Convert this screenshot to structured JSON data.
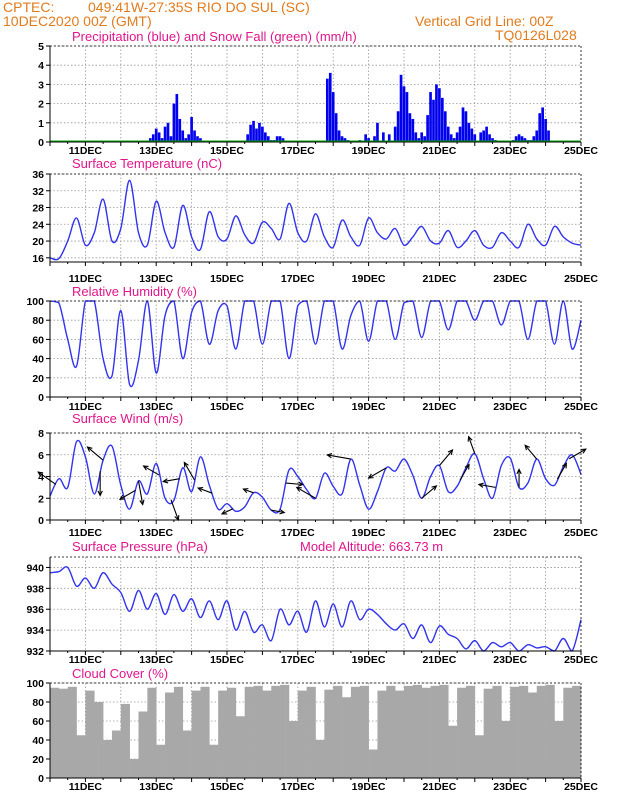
{
  "header": {
    "source": "CPTEC:",
    "location": "049:41W-27:35S  RIO DO SUL (SC)",
    "init_time": "10DEC2020 00Z (GMT)",
    "grid_note": "Vertical Grid Line: 00Z",
    "run_code": "TQ0126L028"
  },
  "colors": {
    "header": "#e07b1e",
    "panel_title": "#e0168a",
    "precip": "#0000ee",
    "snow": "#00aa00",
    "line": "#3333ee",
    "cloud": "#a8a8a8",
    "wind_arrow": "#000000"
  },
  "chart_data": [
    {
      "type": "bar",
      "title": "Precipitation (blue) and Snow Fall (green) (mm/h)",
      "x_unit": "hours after 10DEC2020 00Z",
      "xlim": [
        0,
        360
      ],
      "ylim": [
        0,
        5
      ],
      "yticks": [
        0,
        1,
        2,
        3,
        4,
        5
      ],
      "xticks": [
        "11DEC",
        "13DEC",
        "15DEC",
        "17DEC",
        "19DEC",
        "21DEC",
        "23DEC",
        "25DEC"
      ],
      "grid": true,
      "series": [
        {
          "name": "precip",
          "x": [
            68,
            70,
            72,
            74,
            76,
            78,
            80,
            82,
            84,
            86,
            88,
            90,
            92,
            94,
            96,
            98,
            100,
            102,
            134,
            136,
            138,
            140,
            142,
            144,
            146,
            148,
            150,
            152,
            154,
            156,
            158,
            188,
            190,
            192,
            194,
            196,
            198,
            200,
            202,
            210,
            214,
            216,
            220,
            222,
            226,
            230,
            234,
            236,
            238,
            240,
            242,
            244,
            246,
            248,
            250,
            252,
            254,
            256,
            258,
            260,
            262,
            264,
            266,
            268,
            270,
            272,
            274,
            276,
            278,
            280,
            282,
            284,
            286,
            288,
            292,
            294,
            296,
            298,
            300,
            302,
            314,
            316,
            318,
            320,
            322,
            324,
            326,
            328,
            330,
            332,
            334,
            336,
            338
          ],
          "values": [
            0.2,
            0.4,
            0.7,
            0.5,
            0.2,
            0.8,
            1.0,
            0.3,
            2.0,
            2.5,
            1.2,
            0.6,
            0.2,
            0.4,
            1.3,
            0.6,
            0.3,
            0.2,
            0.4,
            0.9,
            1.1,
            0.7,
            1.0,
            0.8,
            0.5,
            0.3,
            0.1,
            0.1,
            0.3,
            0.3,
            0.2,
            3.3,
            3.6,
            2.6,
            1.5,
            0.6,
            0.3,
            0.2,
            0.1,
            0.1,
            0.4,
            0.2,
            0.3,
            1.0,
            0.5,
            0.4,
            0.8,
            1.6,
            3.5,
            2.9,
            2.6,
            1.5,
            1.2,
            0.5,
            0.2,
            0.5,
            0.3,
            1.4,
            2.6,
            2.2,
            3.0,
            2.8,
            2.3,
            1.6,
            0.8,
            0.4,
            0.2,
            0.5,
            0.8,
            1.8,
            1.6,
            1.0,
            0.7,
            0.4,
            0.5,
            0.6,
            0.8,
            0.4,
            0.2,
            0.1,
            0.1,
            0.3,
            0.4,
            0.3,
            0.2,
            0.1,
            0.1,
            0.3,
            0.6,
            1.5,
            1.8,
            1.2,
            0.6
          ]
        },
        {
          "name": "snow",
          "x": [
            0,
            360
          ],
          "values": [
            0.05,
            0.05
          ]
        }
      ]
    },
    {
      "type": "line",
      "title": "Surface Temperature (nC)",
      "x_unit": "hours after 10DEC2020 00Z",
      "xlim": [
        0,
        360
      ],
      "ylim": [
        15,
        36
      ],
      "yticks": [
        16,
        20,
        24,
        28,
        32,
        36
      ],
      "xticks": [
        "11DEC",
        "13DEC",
        "15DEC",
        "17DEC",
        "19DEC",
        "21DEC",
        "23DEC",
        "25DEC"
      ],
      "grid": true,
      "x": [
        0,
        6,
        12,
        18,
        24,
        30,
        36,
        42,
        48,
        54,
        60,
        66,
        72,
        78,
        84,
        90,
        96,
        102,
        108,
        114,
        120,
        126,
        132,
        138,
        144,
        150,
        156,
        162,
        168,
        174,
        180,
        186,
        192,
        198,
        204,
        210,
        216,
        222,
        228,
        234,
        240,
        246,
        252,
        258,
        264,
        270,
        276,
        282,
        288,
        294,
        300,
        306,
        312,
        318,
        324,
        330,
        336,
        342,
        348,
        354,
        360
      ],
      "values": [
        16,
        15.8,
        20,
        25.5,
        19,
        22,
        30,
        20,
        23,
        34.5,
        22,
        19,
        29.5,
        22,
        18.5,
        28.5,
        21,
        18,
        27,
        21,
        20.5,
        26,
        21.5,
        19.5,
        24.5,
        23,
        20.5,
        29,
        22,
        20,
        26.5,
        21,
        18.5,
        25,
        21,
        19,
        25.5,
        22,
        20.5,
        23,
        19,
        21,
        23.5,
        20,
        19.5,
        22.5,
        18.5,
        20,
        22.5,
        19,
        18.5,
        22,
        20,
        18.5,
        24,
        20.5,
        19,
        23.5,
        21,
        19.5,
        19
      ]
    },
    {
      "type": "line",
      "title": "Relative Humidity (%)",
      "x_unit": "hours after 10DEC2020 00Z",
      "xlim": [
        0,
        360
      ],
      "ylim": [
        0,
        100
      ],
      "yticks": [
        0,
        20,
        40,
        60,
        80,
        100
      ],
      "xticks": [
        "11DEC",
        "13DEC",
        "15DEC",
        "17DEC",
        "19DEC",
        "21DEC",
        "23DEC",
        "25DEC"
      ],
      "grid": true,
      "x": [
        0,
        6,
        12,
        18,
        24,
        30,
        36,
        42,
        48,
        54,
        60,
        66,
        72,
        78,
        84,
        90,
        96,
        102,
        108,
        114,
        120,
        126,
        132,
        138,
        144,
        150,
        156,
        162,
        168,
        174,
        180,
        186,
        192,
        198,
        204,
        210,
        216,
        222,
        228,
        234,
        240,
        246,
        252,
        258,
        264,
        270,
        276,
        282,
        288,
        294,
        300,
        306,
        312,
        318,
        324,
        330,
        336,
        342,
        348,
        354,
        360
      ],
      "values": [
        100,
        98,
        60,
        32,
        100,
        100,
        40,
        22,
        90,
        13,
        38,
        100,
        25,
        85,
        100,
        40,
        88,
        100,
        55,
        90,
        95,
        50,
        100,
        100,
        55,
        100,
        100,
        40,
        95,
        100,
        55,
        100,
        100,
        50,
        85,
        100,
        58,
        100,
        100,
        60,
        98,
        100,
        62,
        100,
        100,
        70,
        100,
        100,
        80,
        100,
        100,
        75,
        100,
        100,
        60,
        100,
        100,
        55,
        100,
        50,
        80
      ]
    },
    {
      "type": "line",
      "title": "Surface Wind (m/s)",
      "x_unit": "hours after 10DEC2020 00Z",
      "xlim": [
        0,
        360
      ],
      "ylim": [
        0,
        8
      ],
      "yticks": [
        0,
        2,
        4,
        6,
        8
      ],
      "xticks": [
        "11DEC",
        "13DEC",
        "15DEC",
        "17DEC",
        "19DEC",
        "21DEC",
        "23DEC",
        "25DEC"
      ],
      "grid": true,
      "x": [
        0,
        6,
        12,
        18,
        24,
        30,
        36,
        42,
        48,
        54,
        60,
        66,
        72,
        78,
        84,
        90,
        96,
        102,
        108,
        114,
        120,
        126,
        132,
        138,
        144,
        150,
        156,
        162,
        168,
        174,
        180,
        186,
        192,
        198,
        204,
        210,
        216,
        222,
        228,
        234,
        240,
        246,
        252,
        258,
        264,
        270,
        276,
        282,
        288,
        294,
        300,
        306,
        312,
        318,
        324,
        330,
        336,
        342,
        348,
        354,
        360
      ],
      "values": [
        2.2,
        3.8,
        3.0,
        7.2,
        5.8,
        2.4,
        5.5,
        6.8,
        3.2,
        1.0,
        3.6,
        2.4,
        5.2,
        2.0,
        1.8,
        4.8,
        2.6,
        5.8,
        3.2,
        1.0,
        1.5,
        0.8,
        1.2,
        2.5,
        2.1,
        0.9,
        1.0,
        4.6,
        4.0,
        2.8,
        2.0,
        4.3,
        3.1,
        2.4,
        5.6,
        3.2,
        1.0,
        2.6,
        4.8,
        4.5,
        5.6,
        4.1,
        2.0,
        4.0,
        5.0,
        2.6,
        3.1,
        4.8,
        6.1,
        3.8,
        2.0,
        5.0,
        5.7,
        3.0,
        3.4,
        5.6,
        3.8,
        3.2,
        4.9,
        6.0,
        4.2
      ],
      "arrows": [
        {
          "x": 4,
          "dir": 235,
          "speed": 2.6
        },
        {
          "x": 34,
          "dir": 0,
          "speed": 3.0
        },
        {
          "x": 36,
          "dir": 230,
          "speed": 2.4
        },
        {
          "x": 58,
          "dir": 300,
          "speed": 2.0
        },
        {
          "x": 60,
          "dir": 10,
          "speed": 3.0
        },
        {
          "x": 74,
          "dir": 240,
          "speed": 2.0
        },
        {
          "x": 82,
          "dir": 20,
          "speed": 2.6
        },
        {
          "x": 88,
          "dir": 280,
          "speed": 1.8
        },
        {
          "x": 98,
          "dir": 210,
          "speed": 2.4
        },
        {
          "x": 110,
          "dir": 250,
          "speed": 1.5
        },
        {
          "x": 124,
          "dir": 295,
          "speed": 1.0
        },
        {
          "x": 138,
          "dir": 250,
          "speed": 0.8
        },
        {
          "x": 150,
          "dir": 80,
          "speed": 1.2
        },
        {
          "x": 160,
          "dir": 85,
          "speed": 1.8
        },
        {
          "x": 180,
          "dir": 240,
          "speed": 2.6
        },
        {
          "x": 204,
          "dir": 260,
          "speed": 3.0
        },
        {
          "x": 228,
          "dir": 300,
          "speed": 2.4
        },
        {
          "x": 252,
          "dir": 130,
          "speed": 2.2
        },
        {
          "x": 264,
          "dir": 140,
          "speed": 2.4
        },
        {
          "x": 278,
          "dir": 150,
          "speed": 2.0
        },
        {
          "x": 288,
          "dir": 200,
          "speed": 2.0
        },
        {
          "x": 302,
          "dir": 260,
          "speed": 1.8
        },
        {
          "x": 318,
          "dir": 180,
          "speed": 2.0
        },
        {
          "x": 330,
          "dir": 220,
          "speed": 2.0
        },
        {
          "x": 344,
          "dir": 150,
          "speed": 2.0
        },
        {
          "x": 352,
          "dir": 120,
          "speed": 2.2
        }
      ]
    },
    {
      "type": "line",
      "title": "Surface Pressure (hPa)",
      "annotation": "Model Altitude: 663.73 m",
      "x_unit": "hours after 10DEC2020 00Z",
      "xlim": [
        0,
        360
      ],
      "ylim": [
        932,
        941
      ],
      "yticks": [
        932,
        934,
        936,
        938,
        940
      ],
      "xticks": [
        "11DEC",
        "13DEC",
        "15DEC",
        "17DEC",
        "19DEC",
        "21DEC",
        "23DEC",
        "25DEC"
      ],
      "grid": true,
      "x": [
        0,
        6,
        12,
        18,
        24,
        30,
        36,
        42,
        48,
        54,
        60,
        66,
        72,
        78,
        84,
        90,
        96,
        102,
        108,
        114,
        120,
        126,
        132,
        138,
        144,
        150,
        156,
        162,
        168,
        174,
        180,
        186,
        192,
        198,
        204,
        210,
        216,
        222,
        228,
        234,
        240,
        246,
        252,
        258,
        264,
        270,
        276,
        282,
        288,
        294,
        300,
        306,
        312,
        318,
        324,
        330,
        336,
        342,
        348,
        354,
        360
      ],
      "values": [
        939.5,
        939.6,
        940.0,
        938.2,
        939.0,
        938.0,
        939.5,
        938.4,
        937.6,
        935.8,
        937.8,
        936.0,
        937.5,
        935.5,
        937.4,
        935.8,
        937.0,
        935.2,
        936.8,
        935.0,
        936.8,
        934.0,
        935.8,
        933.8,
        934.5,
        933.0,
        936.0,
        934.5,
        935.8,
        933.8,
        936.8,
        934.3,
        936.5,
        934.3,
        936.8,
        935.0,
        936.0,
        935.5,
        934.6,
        934.0,
        934.6,
        933.2,
        934.5,
        932.8,
        934.4,
        933.6,
        933.2,
        932.2,
        933.0,
        931.8,
        932.8,
        932.4,
        932.8,
        932.0,
        932.6,
        932.3,
        932.4,
        932.0,
        933.2,
        932.0,
        935.0
      ]
    },
    {
      "type": "bar",
      "title": "Cloud Cover (%)",
      "x_unit": "hours after 10DEC2020 00Z",
      "xlim": [
        0,
        360
      ],
      "ylim": [
        0,
        100
      ],
      "yticks": [
        0,
        20,
        40,
        60,
        80,
        100
      ],
      "xticks": [
        "11DEC",
        "13DEC",
        "15DEC",
        "17DEC",
        "19DEC",
        "21DEC",
        "23DEC",
        "25DEC"
      ],
      "grid": true,
      "series": [
        {
          "name": "cloud",
          "x": [
            0,
            6,
            12,
            18,
            24,
            30,
            36,
            42,
            48,
            54,
            60,
            66,
            72,
            78,
            84,
            90,
            96,
            102,
            108,
            114,
            120,
            126,
            132,
            138,
            144,
            150,
            156,
            162,
            168,
            174,
            180,
            186,
            192,
            198,
            204,
            210,
            216,
            222,
            228,
            234,
            240,
            246,
            252,
            258,
            264,
            270,
            276,
            282,
            288,
            294,
            300,
            306,
            312,
            318,
            324,
            330,
            336,
            342,
            348,
            354
          ],
          "values": [
            95,
            94,
            96,
            45,
            92,
            80,
            40,
            50,
            78,
            20,
            70,
            95,
            35,
            90,
            96,
            50,
            92,
            96,
            35,
            92,
            95,
            65,
            96,
            97,
            92,
            97,
            98,
            60,
            92,
            96,
            40,
            93,
            97,
            85,
            96,
            97,
            30,
            92,
            97,
            92,
            97,
            98,
            95,
            97,
            98,
            55,
            95,
            97,
            45,
            94,
            97,
            60,
            96,
            97,
            90,
            97,
            98,
            60,
            95,
            97
          ]
        }
      ]
    }
  ]
}
